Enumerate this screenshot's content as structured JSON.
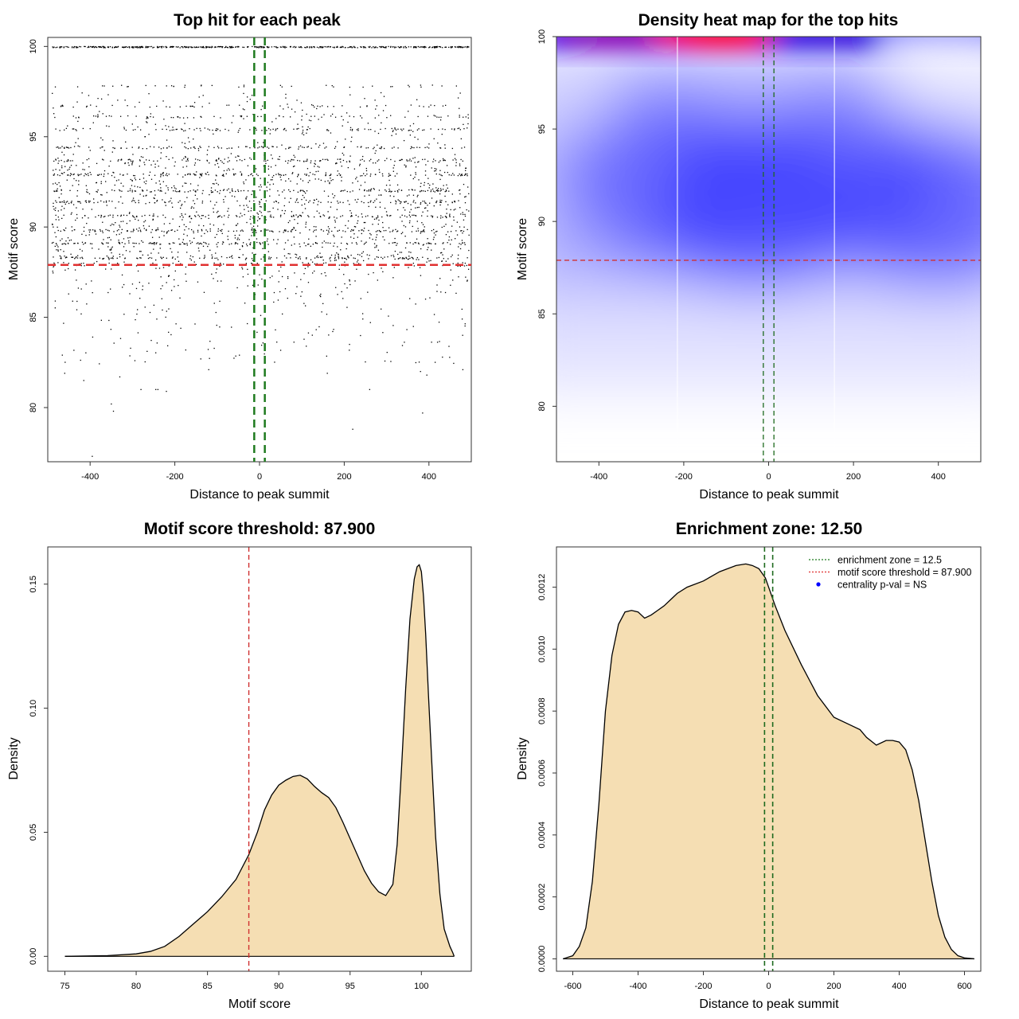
{
  "chart_data": [
    {
      "id": "scatter",
      "type": "scatter",
      "title": "Top hit for each peak",
      "xlabel": "Distance to peak summit",
      "ylabel": "Motif score",
      "xlim": [
        -500,
        500
      ],
      "ylim": [
        77,
        100.5
      ],
      "xticks": [
        -400,
        -200,
        0,
        200,
        400
      ],
      "yticks": [
        80,
        85,
        90,
        95,
        100
      ],
      "hlines": [
        {
          "value": 87.9,
          "color": "#e03030"
        }
      ],
      "vlines": [
        {
          "value": -12.5,
          "color": "#1e7a1e"
        },
        {
          "value": 12.5,
          "color": "#1e7a1e"
        }
      ],
      "points_note": "approx. 3500 points, uniform over x in [-500,500]; score levels 100, 97.8, 96.7, 96.1, 95.4, 94.4, 93.7, 92.9, 92.0, 91.4, 90.6, 89.8, 89.1, 88.3 dense, sparse tail down to 77.3",
      "score_levels": [
        100,
        97.8,
        96.7,
        96.1,
        95.4,
        94.4,
        93.7,
        92.9,
        92.0,
        91.4,
        90.6,
        89.8,
        89.1,
        88.3
      ],
      "outliers": [
        [
          -395,
          77.3
        ],
        [
          -350,
          80.2
        ],
        [
          -345,
          79.8
        ],
        [
          220,
          78.8
        ],
        [
          385,
          79.7
        ],
        [
          -245,
          81.0
        ],
        [
          -280,
          81.0
        ],
        [
          -240,
          81.0
        ],
        [
          -220,
          80.9
        ],
        [
          -460,
          81.9
        ],
        [
          -415,
          81.5
        ],
        [
          -330,
          81.7
        ],
        [
          -120,
          82.1
        ],
        [
          160,
          81.9
        ],
        [
          260,
          81.0
        ],
        [
          380,
          82.0
        ],
        [
          395,
          81.8
        ],
        [
          480,
          82.1
        ]
      ]
    },
    {
      "id": "heatmap",
      "type": "heatmap",
      "title": "Density heat map for the top hits",
      "xlabel": "Distance to peak summit",
      "ylabel": "Motif score",
      "xlim": [
        -500,
        500
      ],
      "ylim": [
        77,
        100
      ],
      "xticks": [
        -400,
        -200,
        0,
        200,
        400
      ],
      "yticks": [
        80,
        85,
        90,
        95,
        100
      ],
      "hlines": [
        {
          "value": 87.9,
          "color": "#d03030"
        }
      ],
      "vlines": [
        {
          "value": -12.5,
          "color": "#1e6a1e"
        },
        {
          "value": 12.5,
          "color": "#1e6a1e"
        }
      ],
      "grid_x": [
        -215,
        155
      ],
      "color_scale": [
        "#ffffff",
        "#0000ff",
        "#ff0000"
      ],
      "hotspots": [
        {
          "x": -110,
          "y": 100,
          "level": 1.0
        },
        {
          "x": -350,
          "y": 99.6,
          "level": 0.6
        },
        {
          "x": 150,
          "y": 99.8,
          "level": 0.35
        },
        {
          "x": -30,
          "y": 91,
          "level": 0.42
        },
        {
          "x": -250,
          "y": 92.3,
          "level": 0.33
        },
        {
          "x": 400,
          "y": 91,
          "level": 0.34
        },
        {
          "x": 180,
          "y": 92.5,
          "level": 0.3
        }
      ]
    },
    {
      "id": "score_density",
      "type": "area",
      "title": "Motif score threshold: 87.900",
      "xlabel": "Motif score",
      "ylabel": "Density",
      "xlim": [
        73.8,
        103.5
      ],
      "ylim": [
        -0.006,
        0.165
      ],
      "xticks": [
        75,
        80,
        85,
        90,
        95,
        100
      ],
      "yticks": [
        0.0,
        0.05,
        0.1,
        0.15
      ],
      "ytick_labels": [
        "0.00",
        "0.05",
        "0.10",
        "0.15"
      ],
      "fill": "#f5deb3",
      "vlines": [
        {
          "value": 87.9,
          "color": "#d03030"
        }
      ],
      "x": [
        75,
        78,
        80,
        81,
        82,
        83,
        84,
        85,
        86,
        87,
        87.9,
        88.5,
        89,
        89.5,
        90,
        90.5,
        91,
        91.5,
        92,
        92.5,
        93,
        93.5,
        94,
        94.5,
        95,
        95.5,
        96,
        96.5,
        97,
        97.5,
        98,
        98.3,
        98.6,
        98.9,
        99.2,
        99.5,
        99.7,
        99.85,
        100,
        100.15,
        100.3,
        100.5,
        100.8,
        101,
        101.3,
        101.6,
        102,
        102.2,
        102.3
      ],
      "y": [
        0.0,
        0.0003,
        0.001,
        0.002,
        0.004,
        0.008,
        0.013,
        0.018,
        0.024,
        0.031,
        0.041,
        0.05,
        0.059,
        0.065,
        0.069,
        0.071,
        0.0725,
        0.073,
        0.0715,
        0.0685,
        0.066,
        0.064,
        0.06,
        0.054,
        0.0475,
        0.041,
        0.0345,
        0.0295,
        0.026,
        0.0245,
        0.029,
        0.045,
        0.075,
        0.108,
        0.136,
        0.152,
        0.157,
        0.1578,
        0.155,
        0.145,
        0.13,
        0.105,
        0.07,
        0.048,
        0.025,
        0.011,
        0.004,
        0.0015,
        0.0
      ]
    },
    {
      "id": "distance_density",
      "type": "area",
      "title": "Enrichment zone: 12.50",
      "xlabel": "Distance to peak summit",
      "ylabel": "Density",
      "xlim": [
        -650,
        650
      ],
      "ylim": [
        -4e-05,
        0.00133
      ],
      "xticks": [
        -600,
        -400,
        -200,
        0,
        200,
        400,
        600
      ],
      "yticks": [
        0.0,
        0.0002,
        0.0004,
        0.0006,
        0.0008,
        0.001,
        0.0012
      ],
      "ytick_labels": [
        "0.0000",
        "0.0002",
        "0.0004",
        "0.0006",
        "0.0008",
        "0.0010",
        "0.0012"
      ],
      "fill": "#f5deb3",
      "vlines": [
        {
          "value": -12.5,
          "color": "#1e6a1e"
        },
        {
          "value": 12.5,
          "color": "#1e6a1e"
        }
      ],
      "x": [
        -630,
        -600,
        -580,
        -560,
        -540,
        -520,
        -500,
        -480,
        -460,
        -440,
        -420,
        -400,
        -380,
        -360,
        -340,
        -320,
        -300,
        -280,
        -250,
        -200,
        -150,
        -100,
        -70,
        -50,
        -30,
        -10,
        0,
        20,
        50,
        100,
        150,
        200,
        250,
        280,
        300,
        330,
        360,
        380,
        400,
        420,
        440,
        460,
        480,
        500,
        520,
        540,
        560,
        580,
        600,
        630
      ],
      "y": [
        0.0,
        1e-05,
        4e-05,
        0.0001,
        0.00025,
        0.0005,
        0.0008,
        0.00098,
        0.00108,
        0.00112,
        0.001125,
        0.00112,
        0.0011,
        0.00111,
        0.001125,
        0.00114,
        0.00116,
        0.00118,
        0.0012,
        0.00122,
        0.00125,
        0.00127,
        0.001275,
        0.00127,
        0.00126,
        0.00123,
        0.0012,
        0.00114,
        0.00106,
        0.00095,
        0.00085,
        0.00078,
        0.000755,
        0.00074,
        0.000715,
        0.00069,
        0.000705,
        0.000705,
        0.0007,
        0.000675,
        0.00061,
        0.00051,
        0.00038,
        0.00025,
        0.00014,
        7e-05,
        3e-05,
        1e-05,
        3e-06,
        0.0
      ],
      "legend": [
        {
          "label": "enrichment zone = 12.5",
          "color": "#1e7a1e",
          "kind": "dotted"
        },
        {
          "label": "motif score threshold = 87.900",
          "color": "#e03030",
          "kind": "dotted"
        },
        {
          "label": "centrality p-val = NS",
          "color": "#0000ff",
          "kind": "dot"
        }
      ]
    }
  ]
}
